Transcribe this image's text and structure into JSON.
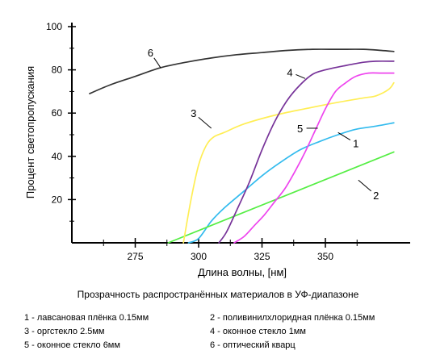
{
  "chart_data": {
    "type": "line",
    "title": "Прозрачность распространённых материалов в УФ-диапазоне",
    "xlabel": "Длина волны, [нм]",
    "ylabel": "Процент светопропускания",
    "x_ticks": [
      275,
      300,
      325,
      350
    ],
    "y_ticks": [
      20,
      40,
      60,
      80,
      100
    ],
    "xlim": [
      250,
      377
    ],
    "ylim": [
      0,
      100
    ],
    "grid": false,
    "series": [
      {
        "id": "1",
        "color": "#33bbee",
        "points": [
          [
            296,
            0
          ],
          [
            300,
            2
          ],
          [
            305,
            10
          ],
          [
            310,
            16
          ],
          [
            318,
            24
          ],
          [
            325,
            31
          ],
          [
            332,
            37
          ],
          [
            340,
            43
          ],
          [
            348,
            47
          ],
          [
            355,
            50
          ],
          [
            362,
            52.5
          ],
          [
            370,
            54
          ],
          [
            377,
            55.5
          ]
        ]
      },
      {
        "id": "2",
        "color": "#55ee44",
        "points": [
          [
            288,
            0
          ],
          [
            377,
            42
          ]
        ]
      },
      {
        "id": "3",
        "color": "#ffee55",
        "points": [
          [
            294,
            0
          ],
          [
            297,
            20
          ],
          [
            300,
            36
          ],
          [
            303,
            45
          ],
          [
            306,
            49
          ],
          [
            310,
            51
          ],
          [
            318,
            55
          ],
          [
            330,
            59
          ],
          [
            342,
            62
          ],
          [
            355,
            65
          ],
          [
            365,
            67
          ],
          [
            370,
            68
          ],
          [
            375,
            71
          ],
          [
            377,
            74
          ]
        ]
      },
      {
        "id": "4",
        "color": "#773399",
        "points": [
          [
            308,
            0
          ],
          [
            311,
            5
          ],
          [
            315,
            15
          ],
          [
            320,
            28
          ],
          [
            325,
            43
          ],
          [
            330,
            56
          ],
          [
            335,
            66
          ],
          [
            340,
            73
          ],
          [
            345,
            78
          ],
          [
            350,
            80
          ],
          [
            358,
            82
          ],
          [
            365,
            83.5
          ],
          [
            370,
            84
          ],
          [
            377,
            84
          ]
        ]
      },
      {
        "id": "5",
        "color": "#ee44ee",
        "points": [
          [
            314,
            0
          ],
          [
            318,
            3
          ],
          [
            322,
            8
          ],
          [
            326,
            13
          ],
          [
            330,
            19
          ],
          [
            334,
            25
          ],
          [
            338,
            33
          ],
          [
            342,
            42
          ],
          [
            346,
            52
          ],
          [
            350,
            62
          ],
          [
            354,
            70
          ],
          [
            358,
            74
          ],
          [
            362,
            77
          ],
          [
            367,
            78.5
          ],
          [
            372,
            78.5
          ],
          [
            377,
            78.5
          ]
        ]
      },
      {
        "id": "6",
        "color": "#333333",
        "points": [
          [
            257,
            69
          ],
          [
            265,
            73
          ],
          [
            275,
            77
          ],
          [
            285,
            81
          ],
          [
            295,
            83.5
          ],
          [
            305,
            85.5
          ],
          [
            315,
            87
          ],
          [
            325,
            88
          ],
          [
            335,
            89
          ],
          [
            345,
            89.5
          ],
          [
            355,
            89.5
          ],
          [
            365,
            89.5
          ],
          [
            372,
            89
          ],
          [
            377,
            88.5
          ]
        ]
      }
    ],
    "curve_labels": [
      {
        "text": "1",
        "leader_x": 355,
        "leader_y": 51,
        "text_x": 362,
        "text_y": 46
      },
      {
        "text": "2",
        "leader_x": 363,
        "leader_y": 29,
        "text_x": 370,
        "text_y": 22
      },
      {
        "text": "3",
        "leader_x": 305,
        "leader_y": 53,
        "text_x": 298,
        "text_y": 60
      },
      {
        "text": "4",
        "leader_x": 342,
        "leader_y": 76,
        "text_x": 336,
        "text_y": 79
      },
      {
        "text": "5",
        "leader_x": 347,
        "leader_y": 53,
        "text_x": 340,
        "text_y": 53
      },
      {
        "text": "6",
        "leader_x": 285,
        "leader_y": 81,
        "text_x": 281,
        "text_y": 88
      }
    ]
  },
  "legend": {
    "items": [
      "1 - лавсановая плёнка 0.15мм",
      "2 - поливинилхлоридная плёнка 0.15мм",
      "3 - оргстекло 2.5мм",
      "4 - оконное стекло 1мм",
      "5 - оконное стекло 6мм",
      "6 - оптический кварц"
    ]
  }
}
